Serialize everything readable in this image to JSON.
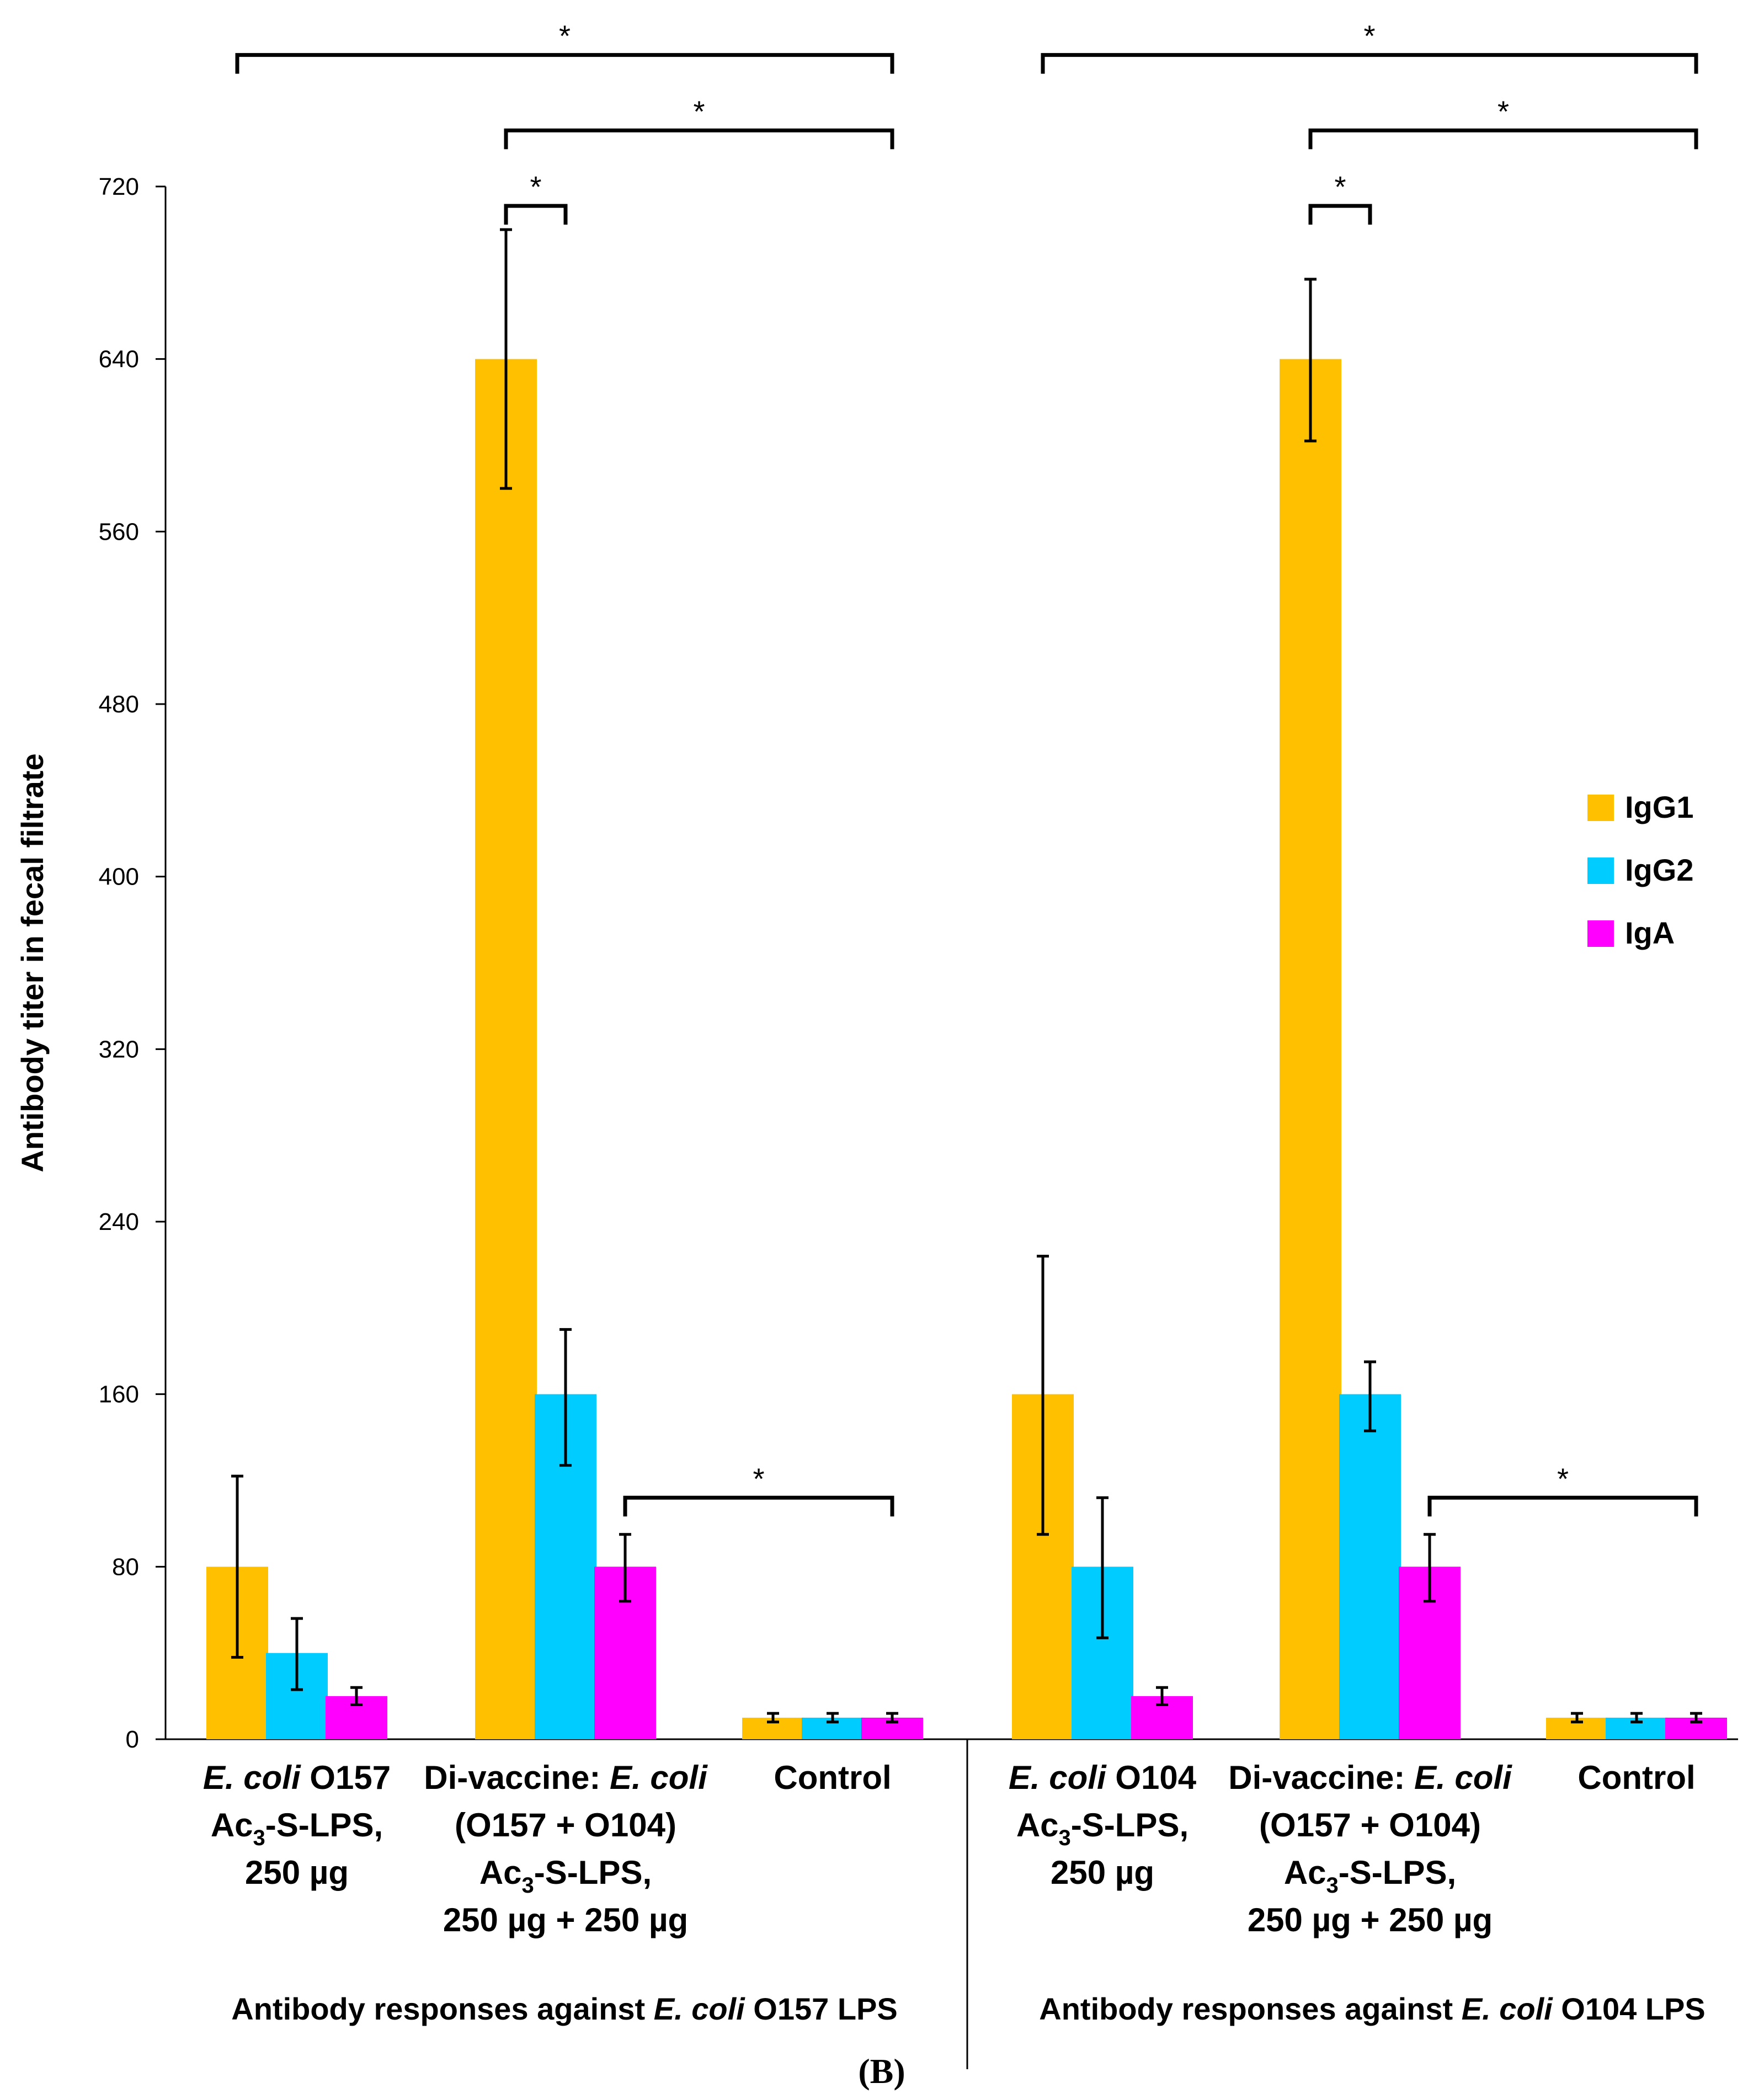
{
  "chart_data": {
    "type": "bar",
    "ylabel": "Antibody titer in fecal filtrate",
    "ylim": [
      0,
      720
    ],
    "yticks": [
      "0",
      "80",
      "160",
      "240",
      "320",
      "400",
      "480",
      "560",
      "640",
      "720"
    ],
    "legend": {
      "position": "right",
      "items": [
        "IgG1",
        "IgG2",
        "IgA"
      ]
    },
    "colors": {
      "IgG1": "#FFC000",
      "IgG2": "#00CCFF",
      "IgA": "#FF00FF"
    },
    "groups": [
      {
        "label": "Antibody responses against E. coli O157 LPS",
        "label_pre": "Antibody responses against ",
        "label_it": "E. coli",
        "label_post": " O157 LPS"
      },
      {
        "label": "Antibody responses against E. coli O104 LPS",
        "label_pre": "Antibody responses against ",
        "label_it": "E. coli",
        "label_post": " O104 LPS"
      }
    ],
    "categories": [
      {
        "group": 0,
        "label": "E. coli O157 Ac3-S-LPS, 250 µg",
        "lines": [
          {
            "it": "E. coli",
            "post": " O157"
          },
          {
            "pre": "Ac",
            "sub": "3",
            "post": "-S-LPS,"
          },
          {
            "pre": "250 µg"
          }
        ]
      },
      {
        "group": 0,
        "label": "Di-vaccine: E. coli (O157 + O104) Ac3-S-LPS, 250 µg + 250 µg",
        "lines": [
          {
            "pre": "Di-vaccine: ",
            "it": "E. coli"
          },
          {
            "pre": "(O157 + O104)"
          },
          {
            "pre": "Ac",
            "sub": "3",
            "post": "-S-LPS,"
          },
          {
            "pre": "250 µg + 250 µg"
          }
        ]
      },
      {
        "group": 0,
        "label": "Control",
        "lines": [
          {
            "pre": "Control"
          }
        ]
      },
      {
        "group": 1,
        "label": "E. coli O104 Ac3-S-LPS, 250 µg",
        "lines": [
          {
            "it": "E. coli",
            "post": " O104"
          },
          {
            "pre": "Ac",
            "sub": "3",
            "post": "-S-LPS,"
          },
          {
            "pre": "250 µg"
          }
        ]
      },
      {
        "group": 1,
        "label": "Di-vaccine: E. coli (O157 + O104) Ac3-S-LPS, 250 µg + 250 µg",
        "lines": [
          {
            "pre": "Di-vaccine: ",
            "it": "E. coli"
          },
          {
            "pre": "(O157 + O104)"
          },
          {
            "pre": "Ac",
            "sub": "3",
            "post": "-S-LPS,"
          },
          {
            "pre": "250 µg + 250 µg"
          }
        ]
      },
      {
        "group": 1,
        "label": "Control",
        "lines": [
          {
            "pre": "Control"
          }
        ]
      }
    ],
    "series": [
      {
        "name": "IgG1",
        "values": [
          80,
          640,
          10,
          160,
          640,
          10
        ],
        "err_low": [
          38,
          580,
          8,
          95,
          602,
          8
        ],
        "err_high": [
          122,
          700,
          12,
          224,
          677,
          12
        ]
      },
      {
        "name": "IgG2",
        "values": [
          40,
          160,
          10,
          80,
          160,
          10
        ],
        "err_low": [
          23,
          127,
          8,
          47,
          143,
          8
        ],
        "err_high": [
          56,
          190,
          12,
          112,
          175,
          12
        ]
      },
      {
        "name": "IgA",
        "values": [
          20,
          80,
          10,
          20,
          80,
          10
        ],
        "err_low": [
          16,
          64,
          8,
          16,
          64,
          8
        ],
        "err_high": [
          24,
          95,
          12,
          24,
          95,
          12
        ]
      }
    ],
    "significance": [
      {
        "from_cat": 0,
        "from_series": 0,
        "to_cat": 2,
        "to_series": 2,
        "level_value": 781,
        "label": "*"
      },
      {
        "from_cat": 1,
        "from_series": 0,
        "to_cat": 2,
        "to_series": 2,
        "level_value": 746,
        "label": "*"
      },
      {
        "from_cat": 1,
        "from_series": 0,
        "to_cat": 1,
        "to_series": 1,
        "level_value": 711,
        "label": "*"
      },
      {
        "from_cat": 1,
        "from_series": 2,
        "to_cat": 2,
        "to_series": 2,
        "level_value": 112,
        "label": "*"
      },
      {
        "from_cat": 3,
        "from_series": 0,
        "to_cat": 5,
        "to_series": 2,
        "level_value": 781,
        "label": "*"
      },
      {
        "from_cat": 4,
        "from_series": 0,
        "to_cat": 5,
        "to_series": 2,
        "level_value": 746,
        "label": "*"
      },
      {
        "from_cat": 4,
        "from_series": 0,
        "to_cat": 4,
        "to_series": 1,
        "level_value": 711,
        "label": "*"
      },
      {
        "from_cat": 4,
        "from_series": 2,
        "to_cat": 5,
        "to_series": 2,
        "level_value": 112,
        "label": "*"
      }
    ],
    "caption": "(B)"
  }
}
